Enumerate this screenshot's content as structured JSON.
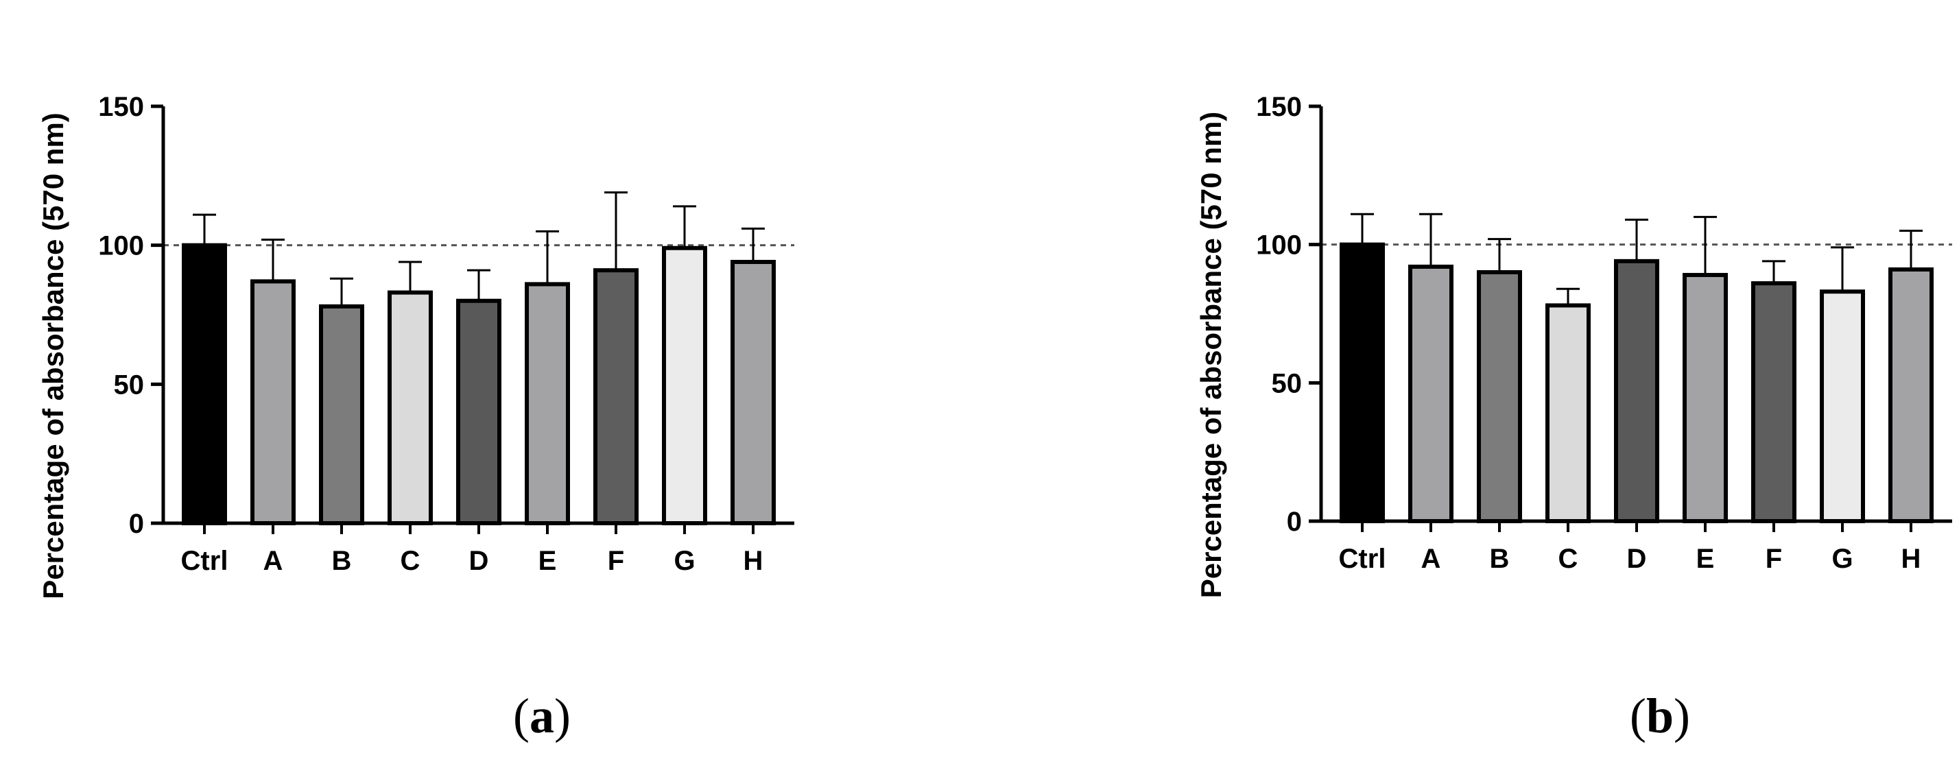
{
  "chart_data": [
    {
      "type": "bar",
      "panel_label": "a",
      "categories": [
        "Ctrl",
        "A",
        "B",
        "C",
        "D",
        "E",
        "F",
        "G",
        "H"
      ],
      "values": [
        100,
        87,
        78,
        83,
        80,
        86,
        91,
        99,
        94
      ],
      "error_up": [
        11,
        15,
        10,
        11,
        11,
        19,
        28,
        15,
        12
      ],
      "colors": [
        "#000000",
        "#a3a3a6",
        "#7c7c7c",
        "#dadada",
        "#595959",
        "#a3a3a6",
        "#5e5e5e",
        "#ebebeb",
        "#a3a3a6"
      ],
      "ylabel": "Percentage of absorbance (570 nm)",
      "ylim": [
        0,
        150
      ],
      "yticks": [
        0,
        50,
        100,
        150
      ],
      "reference_line": 100,
      "grid": false
    },
    {
      "type": "bar",
      "panel_label": "b",
      "categories": [
        "Ctrl",
        "A",
        "B",
        "C",
        "D",
        "E",
        "F",
        "G",
        "H"
      ],
      "values": [
        100,
        92,
        90,
        78,
        94,
        89,
        86,
        83,
        91
      ],
      "error_up": [
        11,
        19,
        12,
        6,
        15,
        21,
        8,
        16,
        14
      ],
      "colors": [
        "#000000",
        "#a3a3a6",
        "#7c7c7c",
        "#dadada",
        "#595959",
        "#a3a3a6",
        "#5e5e5e",
        "#ebebeb",
        "#a3a3a6"
      ],
      "ylabel": "Percentage of absorbance (570 nm)",
      "ylim": [
        0,
        150
      ],
      "yticks": [
        0,
        50,
        100,
        150
      ],
      "reference_line": 100,
      "grid": false
    }
  ]
}
